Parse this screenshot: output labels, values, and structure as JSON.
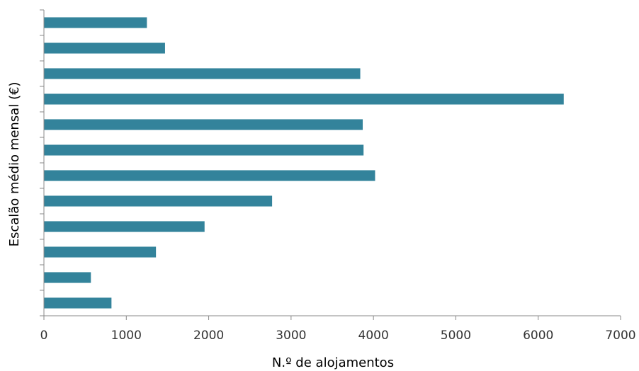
{
  "chart_data": {
    "type": "bar",
    "orientation": "horizontal",
    "title": "",
    "xlabel": "N.º de alojamentos",
    "ylabel": "Escalão médio mensal (€)",
    "xlim": [
      0,
      7000
    ],
    "xticks": [
      "0",
      "1000",
      "2000",
      "3000",
      "4000",
      "5000",
      "6000",
      "7000"
    ],
    "categories": [
      "",
      "",
      "",
      "",
      "",
      "",
      "",
      "",
      "",
      "",
      "",
      ""
    ],
    "values": [
      1250,
      1470,
      3840,
      6310,
      3870,
      3880,
      4020,
      2770,
      1950,
      1360,
      570,
      820
    ],
    "grid": false,
    "legend": "none",
    "colors": {
      "bar": "#33839B",
      "axis": "#888888",
      "text": "#333333"
    }
  }
}
